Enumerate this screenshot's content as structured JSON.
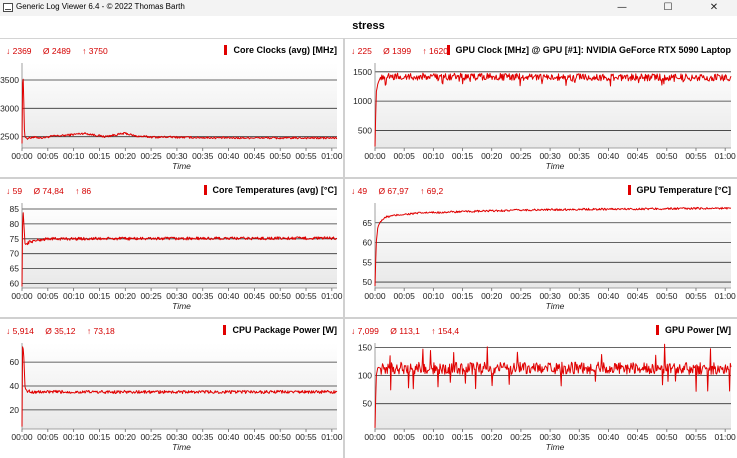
{
  "window": {
    "title": "Generic Log Viewer 6.4 - © 2022 Thomas Barth",
    "minimize_glyph": "—",
    "maximize_glyph": "☐",
    "close_glyph": "✕",
    "icon": "app-log-icon"
  },
  "header": {
    "title": "stress"
  },
  "colors": {
    "series": "#e00000",
    "stats_text": "#d40000",
    "plot_bg_top": "#ffffff",
    "plot_bg_bottom": "#e8e8e8",
    "grid": "#333333"
  },
  "panels": [
    {
      "id": "core-clocks",
      "title": "Core Clocks (avg) [MHz]",
      "stats": {
        "min": "↓ 2369",
        "avg": "Ø 2489",
        "max": "↑ 3750"
      },
      "chart_data": {
        "type": "line",
        "title": "Core Clocks (avg) [MHz]",
        "xlabel": "Time",
        "ylabel": "",
        "x_ticks": [
          "00:00",
          "00:05",
          "00:10",
          "00:15",
          "00:20",
          "00:25",
          "00:30",
          "00:35",
          "00:40",
          "00:45",
          "00:50",
          "00:55",
          "01:00"
        ],
        "y_ticks": [
          2500,
          3000,
          3500
        ],
        "ylim": [
          2300,
          3800
        ],
        "xlim_min": [
          0,
          61
        ],
        "series": [
          {
            "values_x_min": [
              0,
              0.15,
              0.3,
              0.5,
              1,
              2,
              4,
              6,
              8,
              10,
              12,
              14,
              16,
              18,
              20,
              22,
              24,
              26,
              28,
              30,
              34,
              38,
              42,
              46,
              50,
              54,
              58,
              61
            ],
            "values": [
              2380,
              3750,
              3330,
              2500,
              2470,
              2490,
              2480,
              2510,
              2520,
              2540,
              2560,
              2530,
              2500,
              2530,
              2560,
              2510,
              2500,
              2490,
              2495,
              2490,
              2485,
              2480,
              2478,
              2480,
              2475,
              2478,
              2476,
              2478
            ]
          }
        ],
        "noise": 18
      }
    },
    {
      "id": "gpu-clock",
      "title": "GPU Clock [MHz] @ GPU [#1]: NVIDIA GeForce RTX 5090 Laptop",
      "stats": {
        "min": "↓ 225",
        "avg": "Ø 1399",
        "max": "↑ 1620"
      },
      "chart_data": {
        "type": "line",
        "title": "GPU Clock [MHz] @ GPU [#1]: NVIDIA GeForce RTX 5090 Laptop",
        "xlabel": "Time",
        "ylabel": "",
        "x_ticks": [
          "00:00",
          "00:05",
          "00:10",
          "00:15",
          "00:20",
          "00:25",
          "00:30",
          "00:35",
          "00:40",
          "00:45",
          "00:50",
          "00:55",
          "01:00"
        ],
        "y_ticks": [
          500,
          1000,
          1500
        ],
        "ylim": [
          200,
          1650
        ],
        "xlim_min": [
          0,
          61
        ],
        "series": [
          {
            "values_x_min": [
              0,
              0.2,
              0.5,
              1,
              2,
              61
            ],
            "values": [
              225,
              1150,
              1300,
              1420,
              1420,
              1400
            ]
          }
        ],
        "noise": 60
      }
    },
    {
      "id": "core-temperatures",
      "title": "Core Temperatures (avg) [°C]",
      "stats": {
        "min": "↓ 59",
        "avg": "Ø 74,84",
        "max": "↑ 86"
      },
      "chart_data": {
        "type": "line",
        "title": "Core Temperatures (avg) [°C]",
        "xlabel": "Time",
        "ylabel": "",
        "x_ticks": [
          "00:00",
          "00:05",
          "00:10",
          "00:15",
          "00:20",
          "00:25",
          "00:30",
          "00:35",
          "00:40",
          "00:45",
          "00:50",
          "00:55",
          "01:00"
        ],
        "y_ticks": [
          60,
          65,
          70,
          75,
          80,
          85
        ],
        "ylim": [
          58.5,
          87
        ],
        "xlim_min": [
          0,
          61
        ],
        "series": [
          {
            "values_x_min": [
              0,
              0.15,
              0.3,
              0.6,
              1,
              1.5,
              3,
              5,
              61
            ],
            "values": [
              59,
              86,
              82,
              73,
              73.5,
              74,
              74.5,
              75,
              75.2
            ]
          }
        ],
        "noise": 0.5
      }
    },
    {
      "id": "gpu-temperature",
      "title": "GPU Temperature [°C]",
      "stats": {
        "min": "↓ 49",
        "avg": "Ø 67,97",
        "max": "↑ 69,2"
      },
      "chart_data": {
        "type": "line",
        "title": "GPU Temperature [°C]",
        "xlabel": "Time",
        "ylabel": "",
        "x_ticks": [
          "00:00",
          "00:05",
          "00:10",
          "00:15",
          "00:20",
          "00:25",
          "00:30",
          "00:35",
          "00:40",
          "00:45",
          "00:50",
          "00:55",
          "01:00"
        ],
        "y_ticks": [
          50,
          55,
          60,
          65
        ],
        "ylim": [
          48.5,
          70
        ],
        "xlim_min": [
          0,
          61
        ],
        "series": [
          {
            "values_x_min": [
              0,
              0.2,
              0.5,
              1,
              2,
              4,
              8,
              15,
              25,
              35,
              45,
              61
            ],
            "values": [
              49,
              60,
              64,
              65.5,
              66.5,
              67,
              67.5,
              67.8,
              68.2,
              68.4,
              68.5,
              68.7
            ]
          }
        ],
        "noise": 0.25
      }
    },
    {
      "id": "cpu-package-power",
      "title": "CPU Package Power [W]",
      "stats": {
        "min": "↓ 5,914",
        "avg": "Ø 35,12",
        "max": "↑ 73,18"
      },
      "chart_data": {
        "type": "line",
        "title": "CPU Package Power [W]",
        "xlabel": "Time",
        "ylabel": "",
        "x_ticks": [
          "00:00",
          "00:05",
          "00:10",
          "00:15",
          "00:20",
          "00:25",
          "00:30",
          "00:35",
          "00:40",
          "00:45",
          "00:50",
          "00:55",
          "01:00"
        ],
        "y_ticks": [
          20,
          40,
          60
        ],
        "ylim": [
          4,
          76
        ],
        "xlim_min": [
          0,
          61
        ],
        "series": [
          {
            "values_x_min": [
              0,
              0.1,
              0.3,
              0.6,
              1,
              2,
              61
            ],
            "values": [
              6,
              73,
              70,
              38,
              36,
              35,
              35
            ]
          }
        ],
        "noise": 1.3
      }
    },
    {
      "id": "gpu-power",
      "title": "GPU Power [W]",
      "stats": {
        "min": "↓ 7,099",
        "avg": "Ø 113,1",
        "max": "↑ 154,4"
      },
      "chart_data": {
        "type": "line",
        "title": "GPU Power [W]",
        "xlabel": "Time",
        "ylabel": "",
        "x_ticks": [
          "00:00",
          "00:05",
          "00:10",
          "00:15",
          "00:20",
          "00:25",
          "00:30",
          "00:35",
          "00:40",
          "00:45",
          "00:50",
          "00:55",
          "01:00"
        ],
        "y_ticks": [
          50,
          100,
          150
        ],
        "ylim": [
          5,
          158
        ],
        "xlim_min": [
          0,
          61
        ],
        "series": [
          {
            "values_x_min": [
              0,
              0.2,
              0.5,
              1,
              61
            ],
            "values": [
              7,
              100,
              115,
              113,
              113
            ]
          }
        ],
        "noise": 11
      }
    }
  ]
}
